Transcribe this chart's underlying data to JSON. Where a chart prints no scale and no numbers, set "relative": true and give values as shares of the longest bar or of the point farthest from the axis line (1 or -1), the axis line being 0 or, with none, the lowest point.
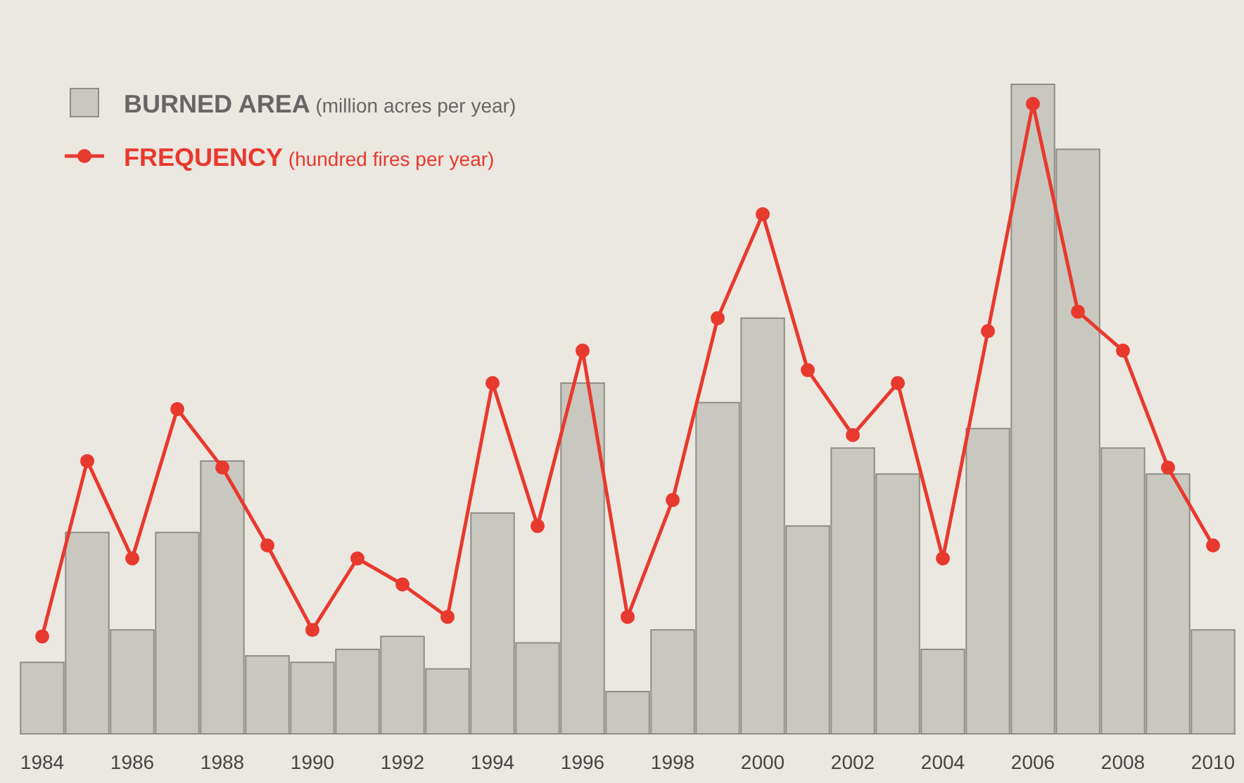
{
  "chart_data": {
    "type": "bar",
    "relative": true,
    "legend": "top left",
    "marker": "circle",
    "line_style": "solid",
    "categories": [
      "1984",
      null,
      "1986",
      null,
      "1988",
      null,
      "1990",
      null,
      "1992",
      null,
      "1994",
      null,
      "1996",
      null,
      "1998",
      null,
      "2000",
      null,
      "2002",
      null,
      "2004",
      null,
      "2006",
      null,
      "2008",
      null,
      "2010"
    ],
    "series": [
      {
        "name": "BURNED AREA (million acres per year)",
        "color": "#c9c8c0",
        "values": [
          0.11,
          0.31,
          0.16,
          0.31,
          0.42,
          0.12,
          0.11,
          0.13,
          0.15,
          0.1,
          0.34,
          0.14,
          0.54,
          0.065,
          0.16,
          0.51,
          0.64,
          0.32,
          0.44,
          0.4,
          0.13,
          0.47,
          1,
          0.9,
          0.44,
          0.4,
          0.16
        ]
      },
      {
        "name": "FREQUENCY (hundred fires per year)",
        "type": "line",
        "color": "#e8392e",
        "values": [
          0.15,
          0.42,
          0.27,
          0.5,
          0.41,
          0.29,
          0.16,
          0.27,
          0.23,
          0.18,
          0.54,
          0.32,
          0.59,
          0.18,
          0.36,
          0.64,
          0.8,
          0.56,
          0.46,
          0.54,
          0.27,
          0.62,
          0.97,
          0.65,
          0.59,
          0.41,
          0.29
        ]
      }
    ]
  }
}
